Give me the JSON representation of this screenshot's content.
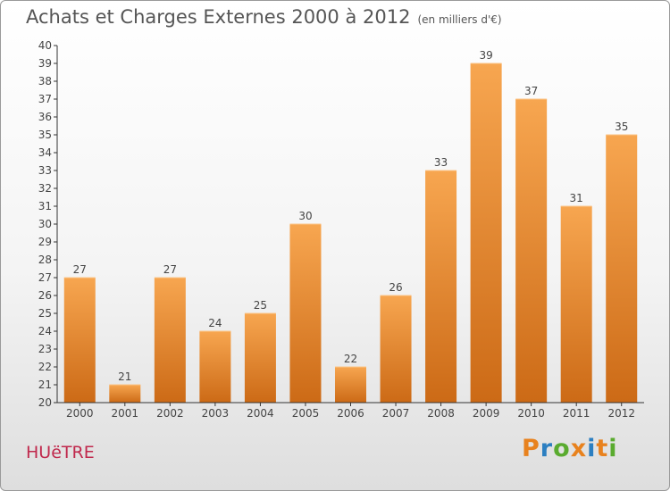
{
  "header": {
    "title": "Achats et Charges Externes 2000 à 2012",
    "unit": "(en milliers d'€)"
  },
  "footer": {
    "place": "HUëTRE",
    "logo": [
      "P",
      "r",
      "o",
      "x",
      "i",
      "t",
      "i"
    ],
    "logo_colors": [
      "#e8821e",
      "#2c7fc1",
      "#5aab2f",
      "#e8821e",
      "#2c7fc1",
      "#e8821e",
      "#5aab2f"
    ]
  },
  "chart_data": {
    "type": "bar",
    "title": "Achats et Charges Externes 2000 à 2012",
    "subtitle": "(en milliers d'€)",
    "xlabel": "",
    "ylabel": "",
    "categories": [
      "2000",
      "2001",
      "2002",
      "2003",
      "2004",
      "2005",
      "2006",
      "2007",
      "2008",
      "2009",
      "2010",
      "2011",
      "2012"
    ],
    "values": [
      27,
      21,
      27,
      24,
      25,
      30,
      22,
      26,
      33,
      39,
      37,
      31,
      35
    ],
    "ylim": [
      20,
      40
    ],
    "ytick_step": 1,
    "grid": false,
    "legend": "none",
    "bar_color_top": "#f7a650",
    "bar_color_bottom": "#cc6a16",
    "data_labels": true
  }
}
